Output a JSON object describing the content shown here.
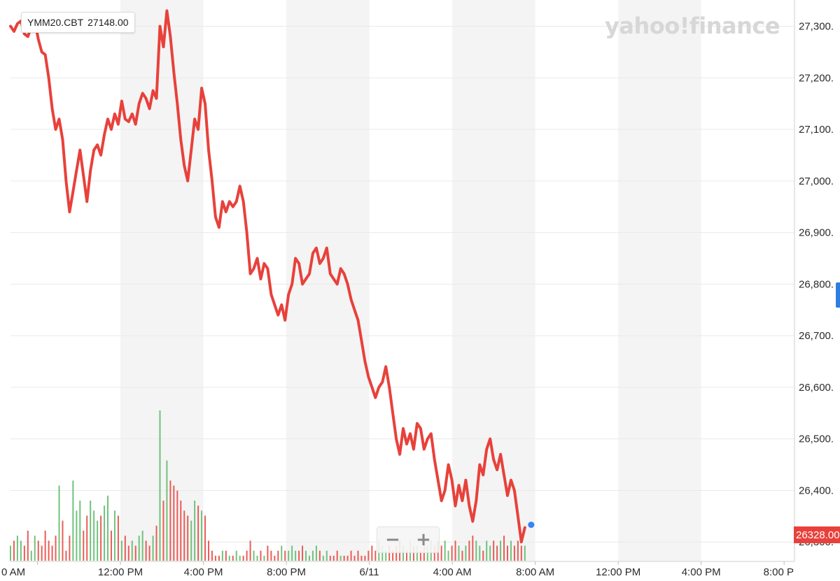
{
  "header": {
    "symbol": "YMM20.CBT",
    "hover_price": "27148.00"
  },
  "watermark": "yahoo!finance",
  "zoom": {
    "minus_label": "−",
    "plus_label": "+"
  },
  "last_price_label": "26328.00",
  "colors": {
    "line": "#e8413b",
    "volume_up": "#58b868",
    "volume_down": "#e8413b",
    "session_band": "#f4f4f4",
    "last_point": "#3b82f6"
  },
  "chart_data": {
    "type": "line",
    "title": "",
    "series": [
      {
        "values": [
          27300,
          27290,
          27305,
          27310,
          27285,
          27280,
          27300,
          27310,
          27275,
          27250,
          27245,
          27200,
          27140,
          27100,
          27120,
          27080,
          27000,
          26940,
          26980,
          27020,
          27060,
          27010,
          26960,
          27020,
          27060,
          27070,
          27050,
          27090,
          27120,
          27100,
          27130,
          27110,
          27155,
          27120,
          27115,
          27130,
          27110,
          27150,
          27170,
          27160,
          27140,
          27175,
          27160,
          27300,
          27260,
          27330,
          27280,
          27210,
          27150,
          27080,
          27030,
          27000,
          27060,
          27120,
          27100,
          27180,
          27150,
          27060,
          27000,
          26930,
          26910,
          26960,
          26940,
          26960,
          26950,
          26960,
          26990,
          26960,
          26900,
          26820,
          26830,
          26850,
          26810,
          26840,
          26830,
          26780,
          26760,
          26740,
          26760,
          26730,
          26780,
          26800,
          26850,
          26840,
          26800,
          26810,
          26820,
          26860,
          26870,
          26840,
          26850,
          26870,
          26820,
          26810,
          26800,
          26830,
          26820,
          26800,
          26770,
          26750,
          26730,
          26690,
          26650,
          26620,
          26600,
          26580,
          26600,
          26610,
          26640,
          26600,
          26550,
          26500,
          26470,
          26520,
          26490,
          26510,
          26480,
          26530,
          26520,
          26480,
          26500,
          26510,
          26460,
          26420,
          26380,
          26400,
          26450,
          26420,
          26370,
          26410,
          26380,
          26420,
          26370,
          26340,
          26380,
          26450,
          26430,
          26480,
          26500,
          26460,
          26440,
          26470,
          26430,
          26390,
          26420,
          26400,
          26350,
          26300,
          26328
        ],
        "x_range": [
          6.7,
          31.5
        ]
      }
    ],
    "volume": {
      "values": [
        3,
        4,
        5,
        4,
        3,
        6,
        2,
        5,
        4,
        3,
        6,
        4,
        3,
        5,
        15,
        8,
        2,
        5,
        16,
        10,
        12,
        6,
        9,
        12,
        10,
        8,
        9,
        11,
        13,
        6,
        10,
        9,
        4,
        5,
        3,
        4,
        3,
        5,
        6,
        4,
        3,
        5,
        7,
        30,
        12,
        20,
        16,
        15,
        14,
        12,
        10,
        9,
        8,
        12,
        11,
        10,
        9,
        4,
        2,
        1,
        1,
        2,
        2,
        1,
        1,
        2,
        1,
        1,
        2,
        4,
        2,
        1,
        2,
        1,
        3,
        2,
        1,
        2,
        3,
        2,
        2,
        3,
        2,
        2,
        3,
        2,
        1,
        2,
        3,
        2,
        1,
        2,
        1,
        1,
        2,
        1,
        1,
        1,
        2,
        1,
        2,
        1,
        1,
        2,
        3,
        2,
        4,
        3,
        2,
        3,
        2,
        3,
        4,
        3,
        2,
        4,
        3,
        3,
        2,
        4,
        3,
        4,
        3,
        4,
        3,
        4,
        2,
        3,
        4,
        3,
        2,
        3,
        4,
        5,
        4,
        3,
        2,
        4,
        3,
        4,
        3,
        4,
        5,
        3,
        4,
        3,
        4,
        3,
        3
      ]
    },
    "y_axis": {
      "ticks": [
        26300,
        26400,
        26500,
        26600,
        26700,
        26800,
        26900,
        27000,
        27100,
        27200,
        27300
      ],
      "tick_labels": [
        "26,300.",
        "26,400.",
        "26,500.",
        "26,600.",
        "26,700.",
        "26,800.",
        "26,900.",
        "27,000.",
        "27,100.",
        "27,200.",
        "27,300."
      ],
      "range": [
        26280,
        27340
      ]
    },
    "x_axis": {
      "ticks": [
        {
          "hour": 8,
          "label": "0 AM"
        },
        {
          "hour": 12,
          "label": "12:00 PM"
        },
        {
          "hour": 16,
          "label": "4:00 PM"
        },
        {
          "hour": 20,
          "label": "8:00 PM"
        },
        {
          "hour": 24,
          "label": "6/11"
        },
        {
          "hour": 28,
          "label": "4:00 AM"
        },
        {
          "hour": 32,
          "label": "8:00 AM"
        },
        {
          "hour": 36,
          "label": "12:00 PM"
        },
        {
          "hour": 40,
          "label": "4:00 PM"
        },
        {
          "hour": 44,
          "label": "8:00 P"
        }
      ],
      "range_hours": [
        6.7,
        44.5
      ],
      "shaded_sessions": [
        [
          12,
          16
        ],
        [
          20,
          24
        ],
        [
          28,
          32
        ],
        [
          36,
          40
        ]
      ]
    },
    "grid": true
  }
}
